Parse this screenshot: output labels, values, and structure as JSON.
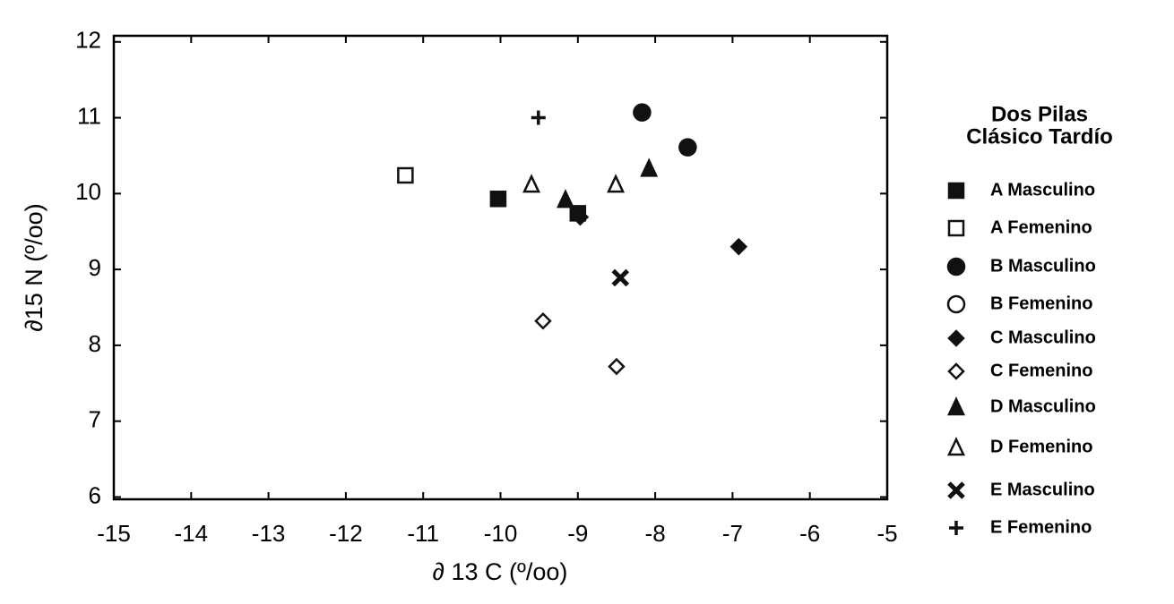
{
  "chart_data": {
    "type": "scatter",
    "xlabel": "∂ 13 C (º/oo)",
    "ylabel": "∂15 N (º/oo)",
    "legend_title": [
      "Dos Pilas",
      "Clásico Tardío"
    ],
    "legend": "right",
    "xlim": [
      -15,
      -5
    ],
    "ylim": [
      5.97,
      12.08
    ],
    "xticks": [
      -15,
      -14,
      -13,
      -12,
      -11,
      -10,
      -9,
      -8,
      -7,
      -6,
      -5
    ],
    "yticks": [
      6,
      7,
      8,
      9,
      10,
      11,
      12
    ],
    "series": [
      {
        "name": "A Masculino",
        "color": "#111111",
        "marker": "square",
        "filled": true,
        "x": [
          -10.03,
          -9.0
        ],
        "values": [
          9.93,
          9.74
        ]
      },
      {
        "name": "A Femenino",
        "color": "#111111",
        "marker": "square",
        "filled": false,
        "x": [
          -11.23
        ],
        "values": [
          10.24
        ]
      },
      {
        "name": "B Masculino",
        "color": "#111111",
        "marker": "circle",
        "filled": true,
        "x": [
          -8.17,
          -7.58
        ],
        "values": [
          11.07,
          10.61
        ]
      },
      {
        "name": "B Femenino",
        "color": "#111111",
        "marker": "circle",
        "filled": false,
        "x": [],
        "values": []
      },
      {
        "name": "C Masculino",
        "color": "#111111",
        "marker": "diamond",
        "filled": true,
        "x": [
          -8.97,
          -6.92
        ],
        "values": [
          9.69,
          9.3
        ]
      },
      {
        "name": "C Femenino",
        "color": "#111111",
        "marker": "diamond",
        "filled": false,
        "x": [
          -9.45,
          -8.5
        ],
        "values": [
          8.32,
          7.72
        ]
      },
      {
        "name": "D Masculino",
        "color": "#111111",
        "marker": "triangle",
        "filled": true,
        "x": [
          -9.16,
          -8.08
        ],
        "values": [
          9.92,
          10.33
        ]
      },
      {
        "name": "D Femenino",
        "color": "#111111",
        "marker": "triangle",
        "filled": false,
        "x": [
          -9.6,
          -8.51
        ],
        "values": [
          10.12,
          10.12
        ]
      },
      {
        "name": "E Masculino",
        "color": "#111111",
        "marker": "x",
        "filled": true,
        "x": [
          -8.45
        ],
        "values": [
          8.89
        ]
      },
      {
        "name": "E Femenino",
        "color": "#111111",
        "marker": "plus",
        "filled": true,
        "x": [
          -9.51
        ],
        "values": [
          11.0
        ]
      }
    ]
  }
}
